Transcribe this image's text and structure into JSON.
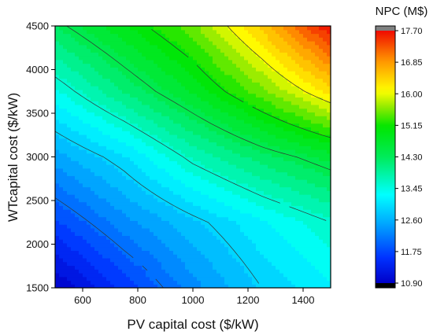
{
  "chart_data": {
    "type": "heatmap",
    "subtype": "contour",
    "xlabel": "PV capital cost ($/kW)",
    "ylabel": "WTcapital cost ($/kW)",
    "xlim": [
      500,
      1500
    ],
    "ylim": [
      1500,
      4500
    ],
    "x_ticks": [
      "600",
      "800",
      "1000",
      "1200",
      "1400"
    ],
    "x_tick_values": [
      600,
      800,
      1000,
      1200,
      1400
    ],
    "y_ticks": [
      "1500",
      "2000",
      "2500",
      "3000",
      "3500",
      "4000",
      "4500"
    ],
    "y_tick_values": [
      1500,
      2000,
      2500,
      3000,
      3500,
      4000,
      4500
    ],
    "colorbar": {
      "title": "NPC (M$)",
      "ticks": [
        "10.90",
        "11.75",
        "12.60",
        "13.45",
        "14.30",
        "15.15",
        "16.00",
        "16.85",
        "17.70"
      ],
      "range": [
        10.9,
        17.7
      ],
      "under_color": "#000000",
      "over_color": "#808080"
    },
    "grid_x": [
      500,
      750,
      1000,
      1250,
      1500
    ],
    "grid_y": [
      1500,
      2250,
      3000,
      3750,
      4500
    ],
    "z": [
      [
        10.9,
        11.6,
        12.3,
        12.85,
        13.2
      ],
      [
        11.7,
        12.3,
        12.75,
        13.2,
        13.6
      ],
      [
        12.5,
        13.0,
        13.7,
        14.2,
        14.6
      ],
      [
        13.4,
        14.1,
        14.75,
        15.5,
        16.3
      ],
      [
        14.3,
        14.9,
        15.5,
        16.5,
        17.7
      ]
    ],
    "contour_levels": [
      12.0,
      12.85,
      13.6,
      14.4,
      15.1,
      16.0
    ]
  }
}
